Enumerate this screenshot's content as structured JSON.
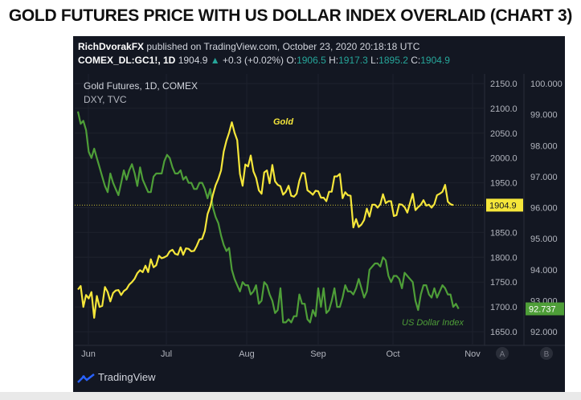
{
  "page_title": "GOLD FUTURES PRICE WITH US DOLLAR INDEX OVERLAID (CHART 3)",
  "header": {
    "publisher": "RichDvorakFX",
    "published_text": " published on TradingView.com, October 23, 2020 20:18:18 UTC",
    "symbol": "COMEX_DL:GC1!, 1D",
    "last": "1904.9",
    "change": "+0.3 (+0.02%)",
    "o_label": "O:",
    "o": "1906.5",
    "h_label": "H:",
    "h": "1917.3",
    "l_label": "L:",
    "l": "1895.2",
    "c_label": "C:",
    "c": "1904.9"
  },
  "legend": {
    "gold_title": "Gold Futures, 1D, COMEX",
    "dxy_title": "DXY, TVC"
  },
  "footer": {
    "brand": "TradingView"
  },
  "colors": {
    "gold": "#f5e63a",
    "dxy": "#4e9e38",
    "panel": "#131722",
    "text": "#b2b5be"
  },
  "chart_data": {
    "type": "line",
    "x_ticks": [
      "Jun",
      "Jul",
      "Aug",
      "Sep",
      "Oct",
      "Nov"
    ],
    "y_left_ticks": [
      "2150.0",
      "2100.0",
      "2050.0",
      "2000.0",
      "1950.0",
      "1900.0",
      "1850.0",
      "1800.0",
      "1750.0",
      "1700.0",
      "1650.0"
    ],
    "y_right_ticks": [
      "100.000",
      "99.000",
      "98.000",
      "97.000",
      "96.000",
      "95.000",
      "94.000",
      "93.000",
      "92.000"
    ],
    "ylim_left": [
      1630,
      2160
    ],
    "ylim_right": [
      91.5,
      100.25
    ],
    "series": [
      {
        "name": "Gold",
        "axis": "left",
        "last_label": "1904.9",
        "values": [
          1735,
          1742,
          1700,
          1724,
          1717,
          1730,
          1678,
          1722,
          1700,
          1702,
          1740,
          1730,
          1711,
          1728,
          1733,
          1734,
          1724,
          1732,
          1736,
          1745,
          1750,
          1757,
          1768,
          1774,
          1770,
          1783,
          1770,
          1796,
          1780,
          1784,
          1803,
          1798,
          1800,
          1803,
          1812,
          1815,
          1807,
          1805,
          1820,
          1805,
          1818,
          1817,
          1812,
          1813,
          1823,
          1836,
          1837,
          1853,
          1887,
          1902,
          1926,
          1945,
          1958,
          1975,
          2013,
          2035,
          2051,
          2072,
          2051,
          2036,
          1968,
          1944,
          1987,
          1983,
          2005,
          1973,
          1960,
          1935,
          1928,
          1971,
          1975,
          1949,
          1986,
          1953,
          1946,
          1943,
          1926,
          1932,
          1944,
          1924,
          1922,
          1928,
          1954,
          1970,
          1969,
          1935,
          1931,
          1926,
          1934,
          1933,
          1920,
          1920,
          1913,
          1932,
          1932,
          1963,
          1963,
          1968,
          1919,
          1931,
          1925,
          1924,
          1860,
          1877,
          1861,
          1866,
          1875,
          1898,
          1882,
          1906,
          1906,
          1900,
          1907,
          1927,
          1909,
          1913,
          1913,
          1883,
          1885,
          1907,
          1906,
          1901,
          1890,
          1909,
          1928,
          1895,
          1901,
          1906,
          1915,
          1904,
          1906,
          1900,
          1907,
          1925,
          1928,
          1932,
          1946,
          1912,
          1907,
          1905
        ]
      },
      {
        "name": "US Dollar Index",
        "axis": "right",
        "last_label": "92.737",
        "values": [
          99.1,
          98.7,
          98.8,
          98.5,
          97.8,
          97.6,
          97.9,
          97.6,
          97.3,
          97.0,
          96.7,
          96.5,
          97.1,
          96.8,
          96.6,
          96.4,
          96.8,
          97.2,
          96.9,
          97.2,
          97.4,
          97.1,
          96.7,
          97.3,
          96.9,
          96.7,
          96.5,
          96.5,
          97.0,
          97.1,
          97.1,
          97.1,
          97.5,
          97.7,
          97.6,
          97.3,
          97.1,
          97.1,
          97.2,
          96.9,
          97.0,
          96.8,
          96.8,
          96.6,
          96.6,
          96.8,
          96.8,
          96.6,
          96.3,
          96.6,
          96.0,
          95.7,
          95.5,
          95.1,
          94.8,
          94.6,
          94.7,
          94.0,
          93.7,
          93.5,
          93.3,
          93.6,
          93.5,
          93.5,
          93.2,
          93.3,
          93.5,
          92.9,
          93.0,
          93.6,
          93.5,
          93.2,
          93.0,
          92.6,
          92.7,
          93.4,
          92.3,
          92.3,
          92.4,
          92.3,
          92.5,
          92.5,
          93.2,
          92.9,
          92.9,
          92.4,
          92.3,
          92.7,
          92.5,
          93.4,
          92.8,
          93.4,
          92.6,
          92.7,
          93.0,
          93.4,
          92.8,
          92.8,
          93.1,
          93.5,
          93.3,
          93.3,
          93.2,
          93.4,
          93.7,
          93.4,
          93.1,
          93.3,
          94.0,
          94.1,
          94.2,
          94.2,
          94.1,
          94.4,
          94.3,
          93.8,
          93.6,
          93.8,
          93.8,
          93.7,
          93.4,
          93.9,
          93.8,
          93.7,
          93.6,
          93.0,
          92.7,
          93.2,
          93.5,
          93.5,
          93.2,
          93.1,
          93.4,
          93.1,
          93.3,
          93.5,
          93.4,
          93.2,
          93.2,
          92.8,
          92.9,
          92.737
        ]
      }
    ]
  }
}
